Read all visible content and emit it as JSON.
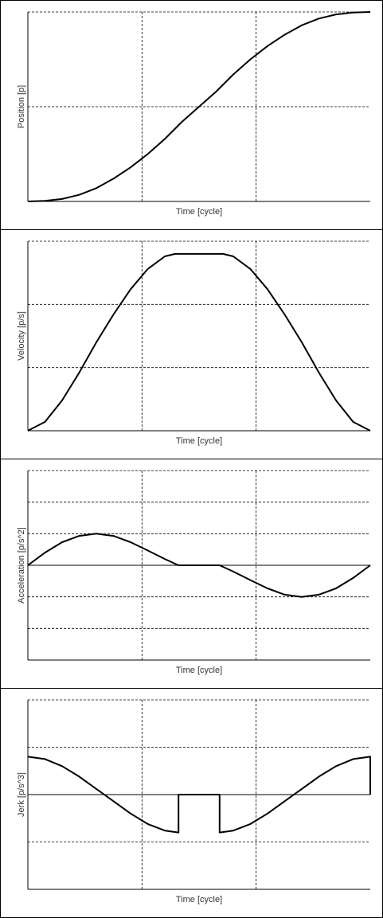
{
  "chart_data": [
    {
      "type": "line",
      "xlabel": "Time [cycle]",
      "ylabel": "Position [p]",
      "xlim": [
        0,
        1
      ],
      "ylim": [
        0,
        1
      ],
      "grid": true,
      "x": [
        0,
        0.05,
        0.1,
        0.15,
        0.2,
        0.25,
        0.3,
        0.35,
        0.4,
        0.45,
        0.5,
        0.55,
        0.6,
        0.65,
        0.7,
        0.75,
        0.8,
        0.85,
        0.9,
        0.95,
        1
      ],
      "series": [
        {
          "values": [
            0,
            0.003,
            0.013,
            0.035,
            0.07,
            0.12,
            0.18,
            0.25,
            0.33,
            0.42,
            0.5,
            0.58,
            0.67,
            0.75,
            0.82,
            0.88,
            0.93,
            0.965,
            0.987,
            0.997,
            1
          ]
        }
      ]
    },
    {
      "type": "line",
      "xlabel": "Time [cycle]",
      "ylabel": "Velocity [p/s]",
      "xlim": [
        0,
        1
      ],
      "ylim": [
        0,
        1.5
      ],
      "grid": true,
      "x": [
        0,
        0.05,
        0.1,
        0.15,
        0.2,
        0.25,
        0.3,
        0.35,
        0.4,
        0.43,
        0.45,
        0.5,
        0.55,
        0.57,
        0.6,
        0.65,
        0.7,
        0.75,
        0.8,
        0.85,
        0.9,
        0.95,
        1
      ],
      "series": [
        {
          "values": [
            0,
            0.07,
            0.24,
            0.46,
            0.7,
            0.92,
            1.12,
            1.28,
            1.38,
            1.4,
            1.4,
            1.4,
            1.4,
            1.4,
            1.38,
            1.28,
            1.12,
            0.92,
            0.7,
            0.46,
            0.24,
            0.07,
            0
          ]
        }
      ]
    },
    {
      "type": "line",
      "xlabel": "Time [cycle]",
      "ylabel": "Acceleration [p/s^2]",
      "xlim": [
        0,
        1
      ],
      "ylim": [
        -3,
        3
      ],
      "grid": true,
      "x": [
        0,
        0.05,
        0.1,
        0.15,
        0.2,
        0.25,
        0.3,
        0.35,
        0.4,
        0.44,
        0.5,
        0.56,
        0.6,
        0.65,
        0.7,
        0.75,
        0.8,
        0.85,
        0.9,
        0.95,
        1
      ],
      "series": [
        {
          "values": [
            0,
            0.4,
            0.73,
            0.93,
            1.0,
            0.93,
            0.73,
            0.47,
            0.2,
            0,
            0,
            0,
            -0.2,
            -0.47,
            -0.73,
            -0.93,
            -1.0,
            -0.93,
            -0.73,
            -0.4,
            0
          ]
        }
      ]
    },
    {
      "type": "line",
      "xlabel": "Time [cycle]",
      "ylabel": "Jerk [p/s^3]",
      "xlim": [
        0,
        1
      ],
      "ylim": [
        -2,
        2
      ],
      "grid": true,
      "x": [
        0,
        0.05,
        0.1,
        0.15,
        0.2,
        0.25,
        0.3,
        0.35,
        0.4,
        0.44,
        0.44,
        0.56,
        0.56,
        0.6,
        0.65,
        0.7,
        0.75,
        0.8,
        0.85,
        0.9,
        0.95,
        1,
        1
      ],
      "series": [
        {
          "values": [
            0.8,
            0.75,
            0.6,
            0.38,
            0.12,
            -0.14,
            -0.4,
            -0.62,
            -0.76,
            -0.8,
            0,
            0,
            -0.8,
            -0.76,
            -0.62,
            -0.4,
            -0.14,
            0.12,
            0.38,
            0.6,
            0.75,
            0.8,
            0
          ]
        }
      ]
    }
  ]
}
